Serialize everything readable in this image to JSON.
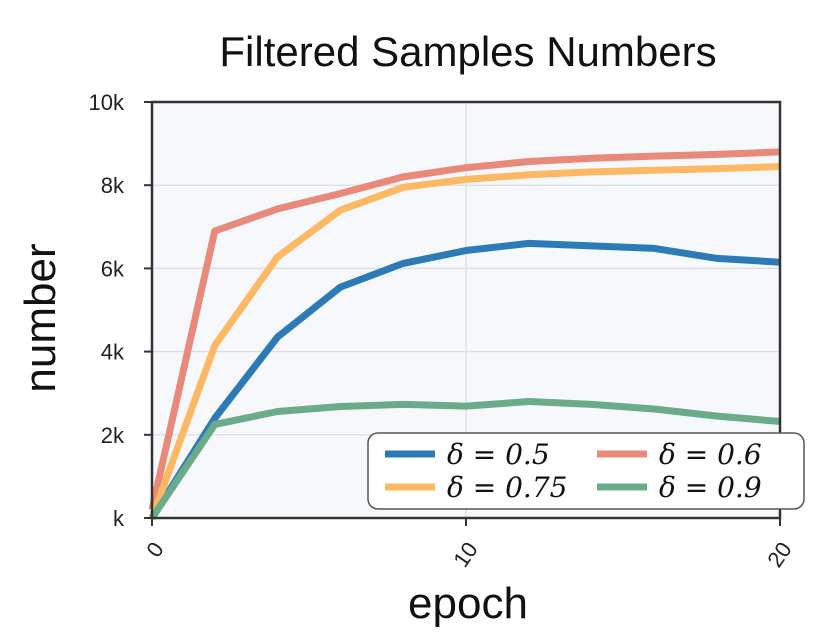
{
  "chart_data": {
    "type": "line",
    "title": "Filtered Samples Numbers",
    "xlabel": "epoch",
    "ylabel": "number",
    "xlim": [
      0,
      20
    ],
    "ylim": [
      0,
      10000
    ],
    "xticks": [
      0,
      10,
      20
    ],
    "xtick_labels": [
      "0",
      "10",
      "20"
    ],
    "yticks": [
      0,
      2000,
      4000,
      6000,
      8000,
      10000
    ],
    "ytick_labels": [
      "k",
      "2k",
      "4k",
      "6k",
      "8k",
      "10k"
    ],
    "grid": true,
    "legend_position": "bottom-right",
    "series": [
      {
        "name": "δ = 0.5",
        "color": "#2c7bb6",
        "x": [
          0,
          2,
          4,
          6,
          8,
          10,
          12,
          14,
          16,
          18,
          20
        ],
        "y": [
          0,
          2400,
          4350,
          5550,
          6120,
          6430,
          6600,
          6540,
          6480,
          6240,
          6150
        ]
      },
      {
        "name": "δ = 0.6",
        "color": "#e8897a",
        "x": [
          0,
          2,
          4,
          6,
          8,
          10,
          12,
          14,
          16,
          18,
          20
        ],
        "y": [
          200,
          6900,
          7430,
          7800,
          8200,
          8420,
          8570,
          8650,
          8700,
          8740,
          8800
        ]
      },
      {
        "name": "δ = 0.75",
        "color": "#fdb863",
        "x": [
          0,
          2,
          4,
          6,
          8,
          10,
          12,
          14,
          16,
          18,
          20
        ],
        "y": [
          0,
          4150,
          6280,
          7400,
          7950,
          8140,
          8250,
          8320,
          8360,
          8400,
          8450
        ]
      },
      {
        "name": "δ = 0.9",
        "color": "#6aab8a",
        "x": [
          0,
          2,
          4,
          6,
          8,
          10,
          12,
          14,
          16,
          18,
          20
        ],
        "y": [
          0,
          2250,
          2560,
          2680,
          2730,
          2690,
          2800,
          2730,
          2620,
          2450,
          2320
        ]
      }
    ]
  },
  "colors": {
    "plot_background": "#f6f8fc",
    "grid": "#d8dce4",
    "axes": "#333333"
  }
}
